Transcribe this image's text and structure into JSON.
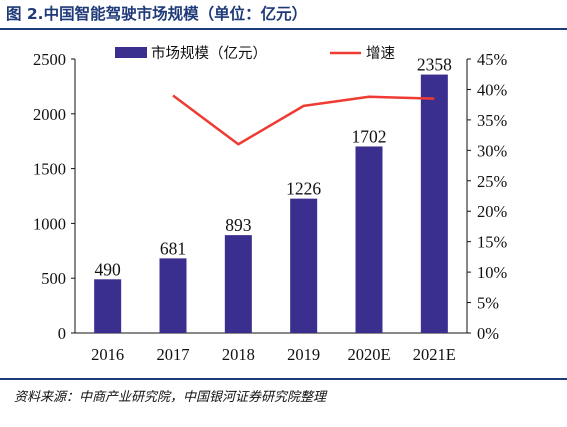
{
  "title": "图 2.中国智能驾驶市场规模（单位：亿元）",
  "source": "资料来源：中商产业研究院，中国银河证券研究院整理",
  "colors": {
    "bar": "#3a2f8f",
    "line": "#ef3b33",
    "rule": "#1f3a78"
  },
  "chart_data": {
    "type": "bar+line",
    "categories": [
      "2016",
      "2017",
      "2018",
      "2019",
      "2020E",
      "2021E"
    ],
    "series": [
      {
        "name": "市场规模（亿元）",
        "type": "bar",
        "axis": "left",
        "values": [
          490,
          681,
          893,
          1226,
          1702,
          2358
        ],
        "labels": [
          "490",
          "681",
          "893",
          "1226",
          "1702",
          "2358"
        ]
      },
      {
        "name": "增速",
        "type": "line",
        "axis": "right",
        "values": [
          null,
          0.39,
          0.31,
          0.373,
          0.388,
          0.385
        ]
      }
    ],
    "y_left": {
      "min": 0,
      "max": 2500,
      "ticks": [
        "0",
        "500",
        "1000",
        "1500",
        "2000",
        "2500"
      ]
    },
    "y_right": {
      "min": 0,
      "max": 0.45,
      "ticks": [
        "0%",
        "5%",
        "10%",
        "15%",
        "20%",
        "25%",
        "30%",
        "35%",
        "40%",
        "45%"
      ]
    },
    "legend_position": "top",
    "grid": false
  }
}
